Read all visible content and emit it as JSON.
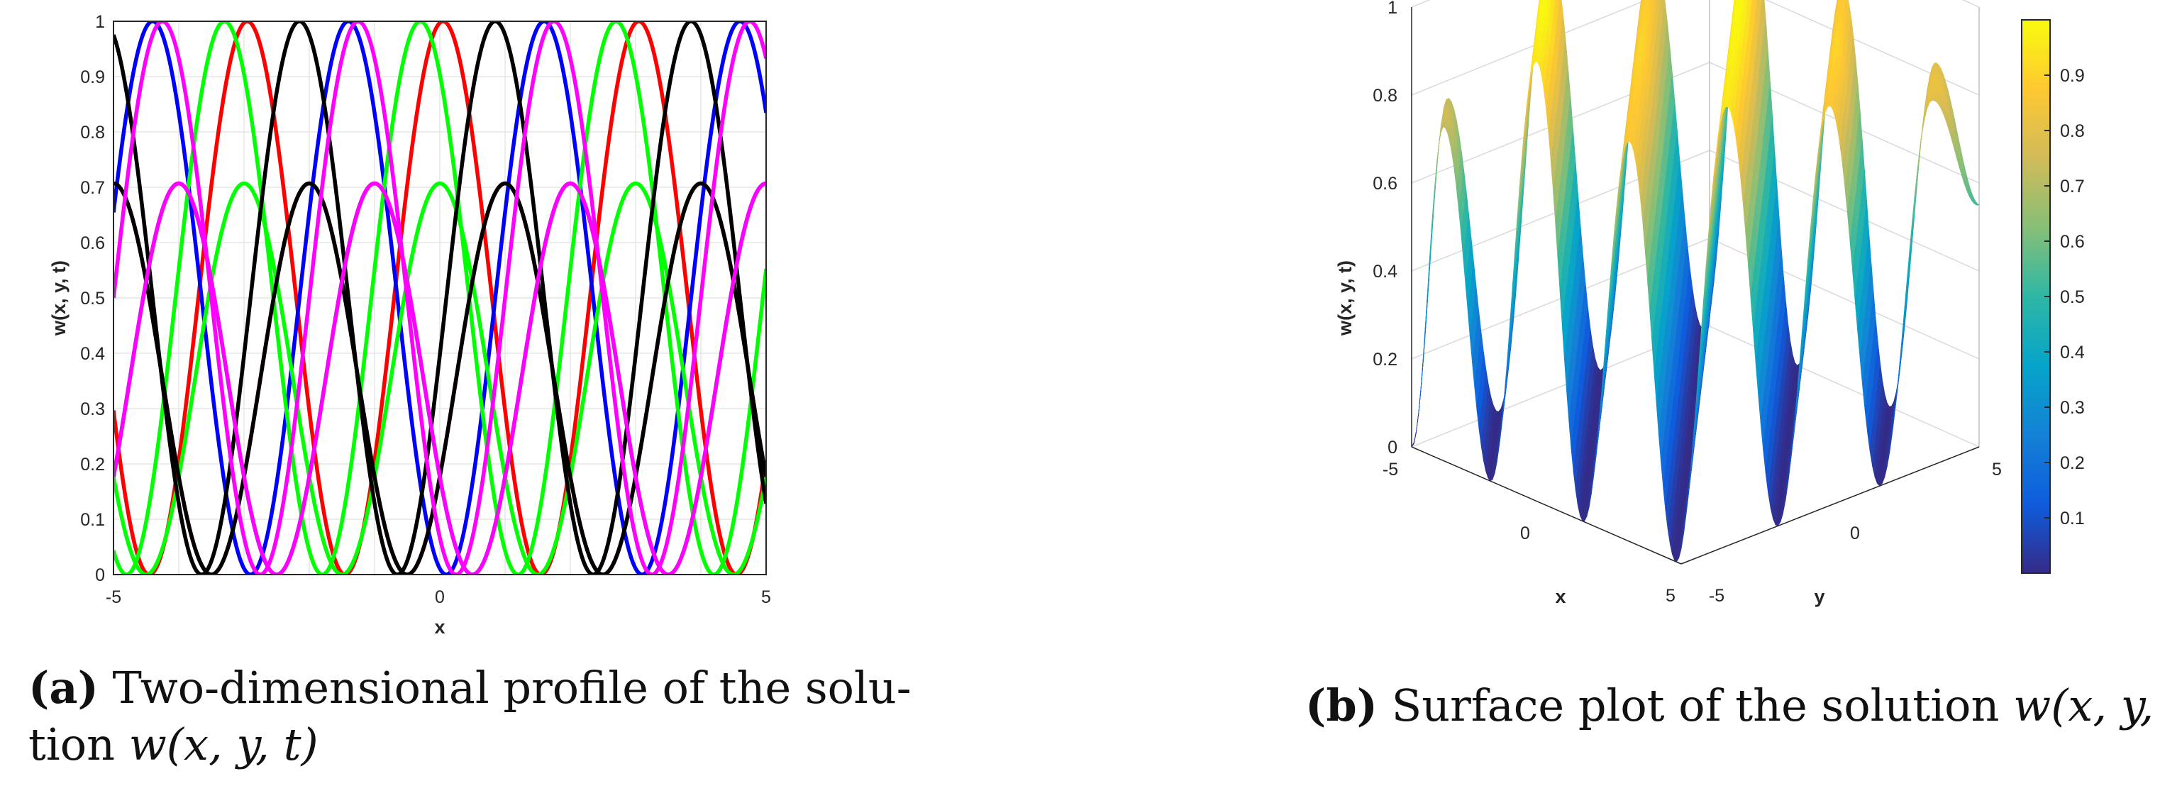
{
  "chart_data": [
    {
      "type": "line",
      "xlabel": "x",
      "ylabel": "w(x, y, t)",
      "xlim": [
        -5,
        5
      ],
      "ylim": [
        0,
        1
      ],
      "xticks": [
        "-5",
        "0",
        "5"
      ],
      "yticks": [
        "0",
        "0.1",
        "0.2",
        "0.3",
        "0.4",
        "0.5",
        "0.6",
        "0.7",
        "0.8",
        "0.9",
        "1"
      ],
      "grid": true,
      "curve_form": "A*cos(pi*x/3 - phase)^2",
      "series": [
        {
          "color": "#ff0000",
          "amplitude": 1.0,
          "peaks_x": [
            -5.95,
            -2.95,
            0.95,
            3.95
          ],
          "zeros_x": [
            -3.95,
            -0.95,
            2.05
          ]
        },
        {
          "color": "#ff0000",
          "amplitude": 0.707,
          "peaks_x": [
            -2.0,
            4.0
          ],
          "zeros_x": [
            -3.5,
            2.5
          ]
        },
        {
          "color": "#0000ff",
          "amplitude": 1.0,
          "peaks_x": [
            -4.4,
            -1.4,
            1.9,
            4.6
          ],
          "zeros_x": [
            -2.9,
            0.6,
            3.6
          ]
        },
        {
          "color": "#0000ff",
          "amplitude": 0.707,
          "peaks_x": [
            -1.0,
            5.0
          ],
          "zeros_x": [
            -2.5,
            3.5
          ]
        },
        {
          "color": "#00ff00",
          "amplitude": 1.0,
          "peaks_x": [
            -3.3,
            -0.3,
            3.0
          ],
          "zeros_x": [
            -4.8,
            -1.8,
            1.4,
            4.5
          ]
        },
        {
          "color": "#00ff00",
          "amplitude": 0.707,
          "peaks_x": [
            -3.0,
            3.0
          ],
          "zeros_x": [
            -4.5,
            1.5
          ]
        },
        {
          "color": "#000000",
          "amplitude": 1.0,
          "peaks_x": [
            -2.15,
            0.85,
            4.05
          ],
          "zeros_x": [
            -3.8,
            -0.8,
            2.3
          ]
        },
        {
          "color": "#000000",
          "amplitude": 0.707,
          "peaks_x": [
            -5.0,
            1.0
          ],
          "zeros_x": [
            -3.5,
            2.5
          ]
        },
        {
          "color": "#ff00ff",
          "amplitude": 1.0,
          "peaks_x": [
            -1.25,
            1.8,
            5.0
          ],
          "zeros_x": [
            -2.75,
            0.3,
            3.5
          ]
        },
        {
          "color": "#ff00ff",
          "amplitude": 0.707,
          "peaks_x": [
            -4.0,
            2.0
          ],
          "zeros_x": [
            -2.5,
            3.5
          ]
        }
      ]
    },
    {
      "type": "surface",
      "xlabel": "x",
      "ylabel": "y",
      "zlabel": "w(x, y, t)",
      "xlim": [
        -5,
        5
      ],
      "ylim": [
        -5,
        5
      ],
      "zlim": [
        0,
        1
      ],
      "xticks": [
        "-5",
        "0",
        "5"
      ],
      "yticks": [
        "-5",
        "0",
        "5"
      ],
      "zticks": [
        "0",
        "0.2",
        "0.4",
        "0.6",
        "0.8",
        "1"
      ],
      "colormap": "parula",
      "colorbar_ticks": [
        "0.1",
        "0.2",
        "0.3",
        "0.4",
        "0.5",
        "0.6",
        "0.7",
        "0.8",
        "0.9"
      ],
      "colorbar_range": [
        0.0,
        1.0
      ],
      "ridge_peaks": [
        0.76,
        1.0,
        0.91,
        1.0,
        0.91,
        0.83
      ],
      "ridge_valleys": [
        0.0,
        0.0,
        0.0,
        0.0,
        0.0
      ]
    }
  ],
  "captions": {
    "a": {
      "tag": "(a)",
      "text_1": " Two-dimensional profile of the solu-",
      "text_2": "tion ",
      "math": "w(x, y, t)"
    },
    "b": {
      "tag": "(b)",
      "text_1": " Surface plot of the solution ",
      "math": "w(x, y, t)"
    }
  }
}
